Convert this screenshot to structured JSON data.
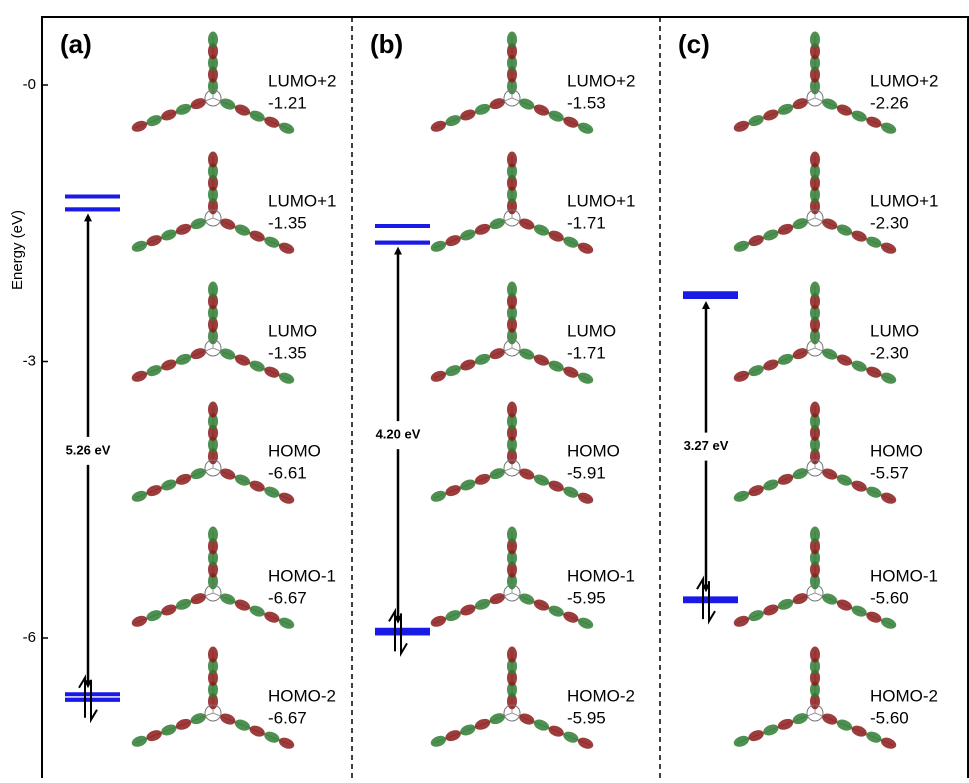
{
  "y_axis": {
    "label": "Energy (eV)",
    "lim": [
      0.45,
      -7.5
    ],
    "ticks": [
      {
        "value": 0,
        "label": "-0"
      },
      -3,
      -6
    ]
  },
  "panels": [
    {
      "label": "(a)",
      "gap": "5.26 eV",
      "orbitals": [
        {
          "name": "LUMO+2",
          "energy": -1.21
        },
        {
          "name": "LUMO+1",
          "energy": -1.35
        },
        {
          "name": "LUMO",
          "energy": -1.35
        },
        {
          "name": "HOMO",
          "energy": -6.61
        },
        {
          "name": "HOMO-1",
          "energy": -6.67
        },
        {
          "name": "HOMO-2",
          "energy": -6.67
        }
      ]
    },
    {
      "label": "(b)",
      "gap": "4.20 eV",
      "orbitals": [
        {
          "name": "LUMO+2",
          "energy": -1.53
        },
        {
          "name": "LUMO+1",
          "energy": -1.71
        },
        {
          "name": "LUMO",
          "energy": -1.71
        },
        {
          "name": "HOMO",
          "energy": -5.91
        },
        {
          "name": "HOMO-1",
          "energy": -5.95
        },
        {
          "name": "HOMO-2",
          "energy": -5.95
        }
      ]
    },
    {
      "label": "(c)",
      "gap": "3.27 eV",
      "orbitals": [
        {
          "name": "LUMO+2",
          "energy": -2.26
        },
        {
          "name": "LUMO+1",
          "energy": -2.3,
          "energy_label": "-2.30"
        },
        {
          "name": "LUMO",
          "energy": -2.3,
          "energy_label": "-2.30"
        },
        {
          "name": "HOMO",
          "energy": -5.57
        },
        {
          "name": "HOMO-1",
          "energy": -5.6,
          "energy_label": "-5.60"
        },
        {
          "name": "HOMO-2",
          "energy": -5.6,
          "energy_label": "-5.60"
        }
      ]
    }
  ]
}
